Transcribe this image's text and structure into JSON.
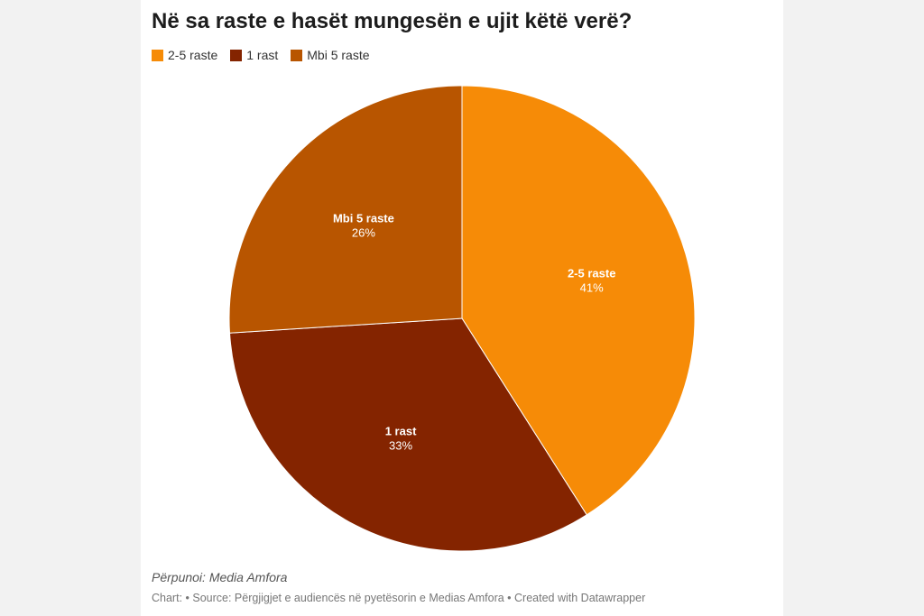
{
  "title": "Në sa raste e hasët mungesën e ujit këtë verë?",
  "credit": "Përpunoi: Media Amfora",
  "footer": "Chart:  • Source: Përgjigjet e audiencës në pyetësorin e Medias Amfora • Created with Datawrapper",
  "chart_data": {
    "type": "pie",
    "title": "Në sa raste e hasët mungesën e ujit këtë verë?",
    "legend_position": "top-left",
    "slices": [
      {
        "label": "2-5 raste",
        "value": 41,
        "display": "41%",
        "color": "#f68b07"
      },
      {
        "label": "1 rast",
        "value": 33,
        "display": "33%",
        "color": "#842400"
      },
      {
        "label": "Mbi 5 raste",
        "value": 26,
        "display": "26%",
        "color": "#b85500"
      }
    ],
    "legend_order": [
      "2-5 raste",
      "1 rast",
      "Mbi 5 raste"
    ]
  }
}
